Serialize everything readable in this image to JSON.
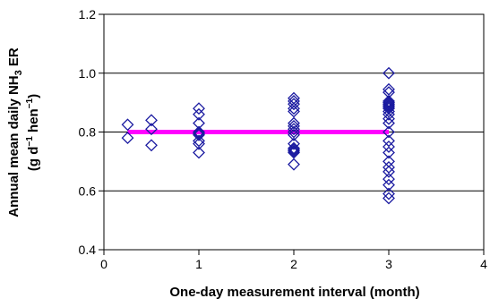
{
  "chart_data": {
    "type": "scatter",
    "xlabel": "One-day measurement interval (month)",
    "ylabel": {
      "line1_prefix": "Annual mean daily NH",
      "line1_sub": "3",
      "line1_suffix": " ER",
      "line2_prefix": "(g d",
      "line2_sup1": "−1",
      "line2_mid": " hen",
      "line2_sup2": "−1",
      "line2_suffix": ")"
    },
    "xlim": [
      0,
      4
    ],
    "ylim": [
      0.4,
      1.2
    ],
    "x_ticks": [
      0,
      1,
      2,
      3,
      4
    ],
    "x_tick_labels": [
      "0",
      "1",
      "2",
      "3",
      "4"
    ],
    "y_ticks": [
      0.4,
      0.6,
      0.8,
      1.0,
      1.2
    ],
    "y_tick_labels": [
      "0.4",
      "0.6",
      "0.8",
      "1.0",
      "1.2"
    ],
    "gridlines_y": [
      0.6,
      0.8,
      1.0
    ],
    "grid": "horizontal",
    "marker": "open-diamond",
    "marker_color": "#1a1aa0",
    "reference_line": {
      "x": [
        0.25,
        3.0
      ],
      "y": 0.8,
      "color": "#ff00ff"
    },
    "series": [
      {
        "x": 0.25,
        "values": [
          0.825,
          0.78
        ]
      },
      {
        "x": 0.5,
        "values": [
          0.84,
          0.81,
          0.755
        ]
      },
      {
        "x": 1.0,
        "values": [
          0.88,
          0.86,
          0.83,
          0.8,
          0.795,
          0.79,
          0.77,
          0.76,
          0.73
        ]
      },
      {
        "x": 2.0,
        "values": [
          0.915,
          0.905,
          0.895,
          0.88,
          0.87,
          0.83,
          0.82,
          0.81,
          0.8,
          0.79,
          0.76,
          0.745,
          0.74,
          0.735,
          0.73,
          0.69
        ]
      },
      {
        "x": 3.0,
        "values": [
          1.0,
          0.945,
          0.935,
          0.905,
          0.9,
          0.895,
          0.89,
          0.885,
          0.88,
          0.87,
          0.86,
          0.845,
          0.83,
          0.8,
          0.77,
          0.75,
          0.73,
          0.7,
          0.68,
          0.665,
          0.64,
          0.62,
          0.59,
          0.575
        ]
      }
    ]
  }
}
